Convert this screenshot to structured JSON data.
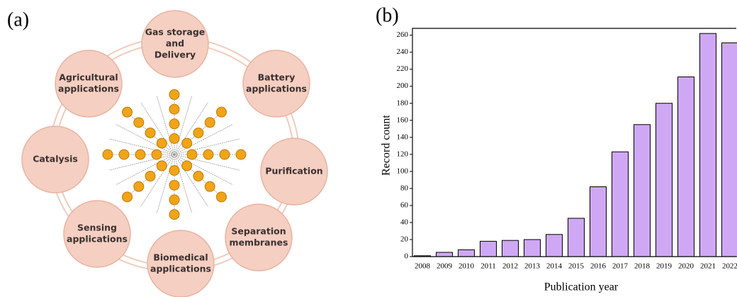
{
  "diagram": {
    "label": "(a)",
    "nodes": [
      {
        "lines": [
          "Gas storage",
          "and",
          "Delivery"
        ]
      },
      {
        "lines": [
          "Battery",
          "applications"
        ]
      },
      {
        "lines": [
          "Purification"
        ]
      },
      {
        "lines": [
          "Separation",
          "membranes"
        ]
      },
      {
        "lines": [
          "Biomedical",
          "applications"
        ]
      },
      {
        "lines": [
          "Sensing",
          "applications"
        ]
      },
      {
        "lines": [
          "Catalysis"
        ]
      },
      {
        "lines": [
          "Agricultural",
          "applications"
        ]
      }
    ]
  },
  "chart_data": {
    "type": "bar",
    "label": "(b)",
    "x_label": "Publication year",
    "y_label": "Record count",
    "categories": [
      "2008",
      "2009",
      "2010",
      "2011",
      "2012",
      "2013",
      "2014",
      "2015",
      "2016",
      "2017",
      "2018",
      "2019",
      "2020",
      "2021",
      "2022"
    ],
    "values": [
      1,
      5,
      8,
      18,
      19,
      20,
      26,
      45,
      82,
      123,
      155,
      180,
      211,
      262,
      251
    ],
    "color": "#cfa8f5",
    "ylim": [
      0,
      268
    ],
    "yticks": [
      0,
      20,
      40,
      60,
      80,
      100,
      120,
      140,
      160,
      180,
      200,
      220,
      240,
      260
    ]
  }
}
